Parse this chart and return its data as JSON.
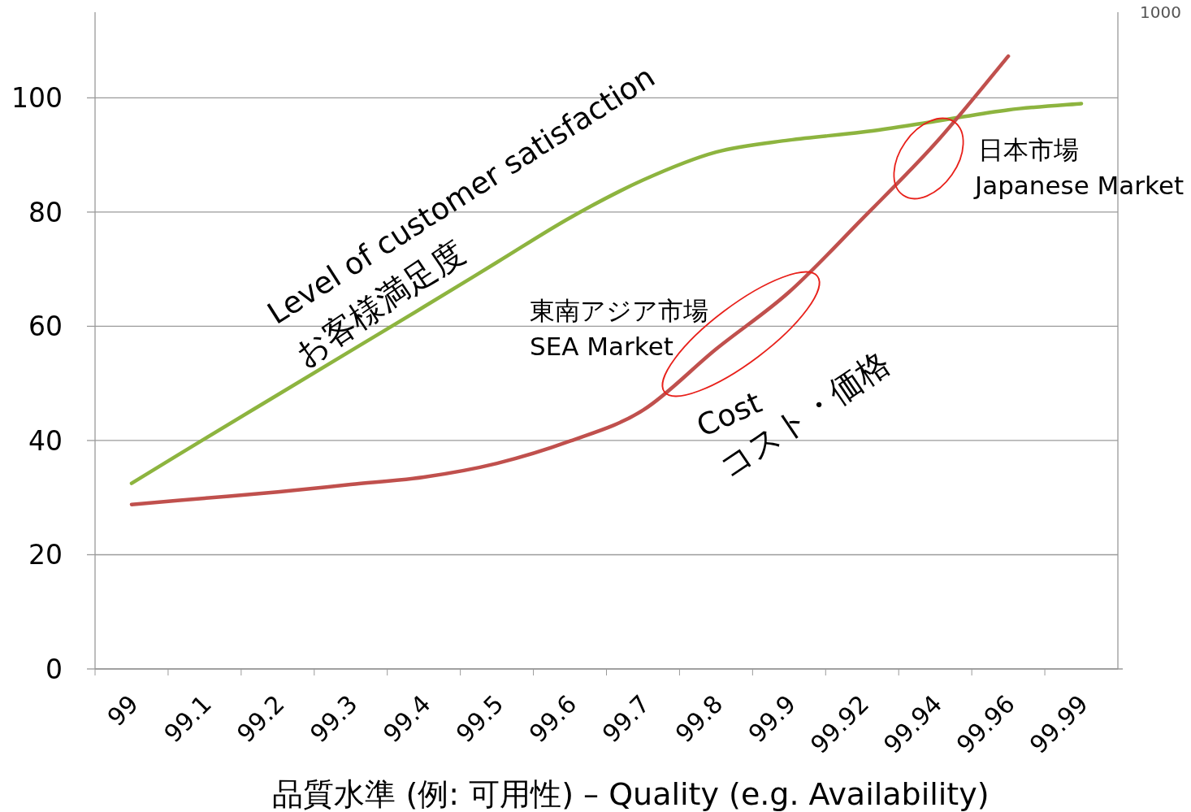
{
  "chart_data": {
    "type": "line",
    "xlabel": "品質水準 (例: 可用性) – Quality (e.g. Availability)",
    "categories": [
      "99",
      "99.1",
      "99.2",
      "99.3",
      "99.4",
      "99.5",
      "99.6",
      "99.7",
      "99.8",
      "99.9",
      "99.92",
      "99.94",
      "99.96",
      "99.99"
    ],
    "ylim": [
      0,
      115
    ],
    "yticks": [
      0,
      20,
      40,
      60,
      80,
      100
    ],
    "grid": "y",
    "marker": "none",
    "line_style": "solid",
    "series": [
      {
        "name": "Level of customer satisfaction",
        "color": "#8db43f",
        "values": [
          32.5,
          40.3,
          48,
          55.7,
          63.4,
          71.2,
          79,
          85.6,
          90.5,
          92.6,
          94,
          95.9,
          97.9,
          99
        ]
      },
      {
        "name": "Cost",
        "color": "#c0504d",
        "values": [
          28.8,
          29.9,
          31,
          32.3,
          33.6,
          36,
          39.9,
          45.3,
          56,
          66,
          78.8,
          92,
          107.3,
          null
        ]
      }
    ],
    "annotations": [
      "お客様満足度",
      "コスト・価格",
      "東南アジア市場",
      "SEA Market",
      "日本市場",
      "Japanese Market",
      "1000"
    ]
  }
}
